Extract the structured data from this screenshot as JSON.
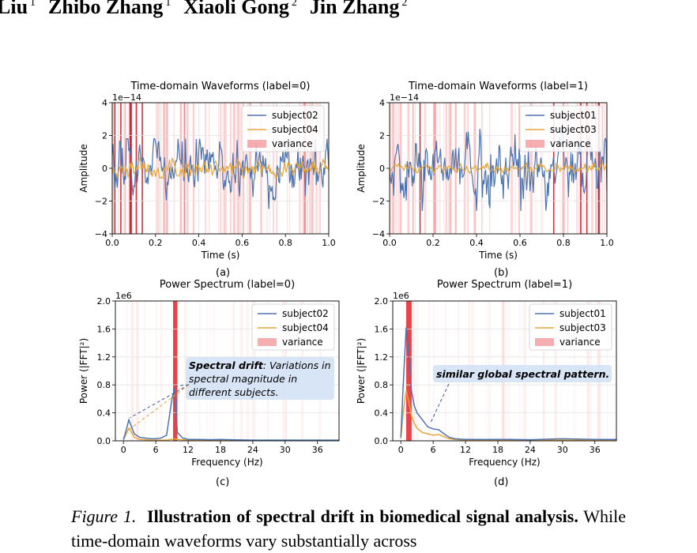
{
  "authors": [
    {
      "name": "Liu",
      "sup": "1"
    },
    {
      "name": "Zhibo Zhang",
      "sup": "1"
    },
    {
      "name": "Xiaoli Gong",
      "sup": "2"
    },
    {
      "name": "Jin Zhang",
      "sup": "2"
    }
  ],
  "caption": {
    "figure_label": "Figure 1.",
    "bold_text": "Illustration of spectral drift in biomedical signal analysis.",
    "text": "While time-domain waveforms vary substantially across"
  },
  "colors": {
    "blue": "#4c72b0",
    "orange": "#e5a63c",
    "red": "#e8383d",
    "annotation_bg": "#d6e4f5"
  },
  "chart_data": [
    {
      "panel": "(a)",
      "type": "line",
      "title": "Time-domain Waveforms (label=0)",
      "xlabel": "Time (s)",
      "ylabel": "Amplitude",
      "offset_text": "1e−14",
      "xlim": [
        0,
        1.0
      ],
      "ylim": [
        -4,
        4
      ],
      "xticks": [
        "0.0",
        "0.2",
        "0.4",
        "0.6",
        "0.8",
        "1.0"
      ],
      "yticks": [
        "−4",
        "−2",
        "0",
        "2",
        "4"
      ],
      "legend": {
        "position": "upper-right",
        "entries": [
          "subject02",
          "subject04",
          "variance"
        ]
      },
      "series": [
        {
          "name": "subject02",
          "amplitude_range": [
            -2.8,
            1.8
          ],
          "values_note_omitted": true
        },
        {
          "name": "subject04",
          "amplitude_range": [
            -0.6,
            0.6
          ]
        }
      ]
    },
    {
      "panel": "(b)",
      "type": "line",
      "title": "Time-domain Waveforms (label=1)",
      "xlabel": "Time (s)",
      "ylabel": "Amplitude",
      "offset_text": "1e−14",
      "xlim": [
        0,
        1.0
      ],
      "ylim": [
        -4,
        4
      ],
      "xticks": [
        "0.0",
        "0.2",
        "0.4",
        "0.6",
        "0.8",
        "1.0"
      ],
      "yticks": [
        "−4",
        "−2",
        "0",
        "2",
        "4"
      ],
      "legend": {
        "position": "upper-right",
        "entries": [
          "subject01",
          "subject03",
          "variance"
        ]
      },
      "series": [
        {
          "name": "subject01",
          "amplitude_range": [
            -2.6,
            2.5
          ]
        },
        {
          "name": "subject03",
          "amplitude_range": [
            -0.3,
            0.3
          ]
        }
      ]
    },
    {
      "panel": "(c)",
      "type": "line",
      "title": "Power Spectrum (label=0)",
      "xlabel": "Frequency (Hz)",
      "ylabel": "Power (|FFT|²)",
      "offset_text": "1e6",
      "xlim": [
        -1.5,
        40
      ],
      "ylim": [
        0,
        2.0
      ],
      "xticks": [
        "0",
        "6",
        "12",
        "18",
        "24",
        "30",
        "36"
      ],
      "yticks": [
        "0.0",
        "0.4",
        "0.8",
        "1.2",
        "1.6",
        "2.0"
      ],
      "legend": {
        "position": "upper-right",
        "entries": [
          "subject02",
          "subject04",
          "variance"
        ]
      },
      "series": [
        {
          "name": "subject02",
          "x": [
            0,
            0.5,
            1,
            1.5,
            2,
            3,
            4,
            5,
            6,
            7,
            8,
            9,
            9.5,
            10,
            11,
            12,
            14,
            16,
            18,
            20,
            24,
            30,
            36,
            40
          ],
          "y": [
            0.02,
            0.15,
            0.3,
            0.2,
            0.1,
            0.05,
            0.04,
            0.03,
            0.03,
            0.04,
            0.08,
            0.6,
            0.75,
            0.12,
            0.04,
            0.02,
            0.02,
            0.015,
            0.02,
            0.015,
            0.01,
            0.01,
            0.01,
            0.01
          ]
        },
        {
          "name": "subject04",
          "x": [
            0,
            0.5,
            1,
            1.5,
            2,
            3,
            4,
            5,
            6,
            8,
            9.5,
            10,
            12,
            16,
            20,
            24,
            30,
            36,
            40
          ],
          "y": [
            0.01,
            0.1,
            0.18,
            0.12,
            0.05,
            0.02,
            0.015,
            0.01,
            0.01,
            0.01,
            0.03,
            0.02,
            0.01,
            0.005,
            0.005,
            0.005,
            0.005,
            0.005,
            0.005
          ]
        }
      ],
      "variance_band": {
        "x": [
          9.2,
          10.0
        ]
      },
      "annotation": {
        "bold": "Spectral drift",
        "text": ": Variations in spectral magnitude in different subjects."
      }
    },
    {
      "panel": "(d)",
      "type": "line",
      "title": "Power Spectrum (label=1)",
      "xlabel": "Frequency (Hz)",
      "ylabel": "Power (|FFT|²)",
      "offset_text": "1e6",
      "xlim": [
        -1.5,
        40
      ],
      "ylim": [
        0,
        2.0
      ],
      "xticks": [
        "0",
        "6",
        "12",
        "18",
        "24",
        "30",
        "36"
      ],
      "yticks": [
        "0.0",
        "0.4",
        "0.8",
        "1.2",
        "1.6",
        "2.0"
      ],
      "legend": {
        "position": "upper-right",
        "entries": [
          "subject01",
          "subject03",
          "variance"
        ]
      },
      "series": [
        {
          "name": "subject01",
          "x": [
            0,
            0.5,
            1,
            1.5,
            2,
            2.5,
            3,
            4,
            5,
            6,
            7,
            8,
            9,
            10,
            12,
            16,
            20,
            24,
            30,
            36,
            40
          ],
          "y": [
            0.05,
            0.9,
            1.62,
            1.2,
            0.7,
            0.5,
            0.4,
            0.3,
            0.2,
            0.17,
            0.16,
            0.1,
            0.05,
            0.03,
            0.02,
            0.02,
            0.02,
            0.015,
            0.03,
            0.02,
            0.02
          ]
        },
        {
          "name": "subject03",
          "x": [
            0,
            0.5,
            1,
            1.5,
            2,
            2.5,
            3,
            4,
            5,
            6,
            7,
            8,
            9,
            10,
            12,
            16,
            20,
            24,
            30,
            36,
            40
          ],
          "y": [
            0.03,
            0.45,
            0.72,
            0.55,
            0.35,
            0.25,
            0.18,
            0.12,
            0.1,
            0.08,
            0.09,
            0.06,
            0.03,
            0.02,
            0.01,
            0.01,
            0.01,
            0.01,
            0.01,
            0.01,
            0.01
          ]
        }
      ],
      "variance_band": {
        "x": [
          1.0,
          2.0
        ]
      },
      "annotation": {
        "text": "similar global spectral pattern."
      }
    }
  ]
}
